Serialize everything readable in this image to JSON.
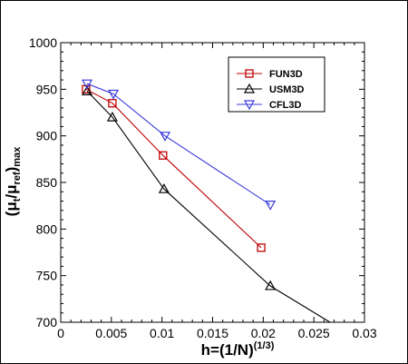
{
  "chart_data": {
    "type": "line",
    "xlabel": {
      "main": "h=(1/N)",
      "sup": "(1/3)"
    },
    "ylabel": {
      "open": "(μ",
      "sub1": "t",
      "mid": "/μ",
      "sub2": "ref",
      "close": ")",
      "sub3": "max"
    },
    "xlim": [
      0,
      0.03
    ],
    "ylim": [
      700,
      1000
    ],
    "x_ticks": [
      0,
      0.005,
      0.01,
      0.015,
      0.02,
      0.025,
      0.03
    ],
    "x_tick_labels": [
      "0",
      "0.005",
      "0.01",
      "0.015",
      "0.02",
      "0.025",
      "0.03"
    ],
    "y_ticks": [
      700,
      750,
      800,
      850,
      900,
      950,
      1000
    ],
    "y_tick_labels": [
      "700",
      "750",
      "800",
      "850",
      "900",
      "950",
      "1000"
    ],
    "grid": false,
    "legend_position": "top-right",
    "series": [
      {
        "name": "FUN3D",
        "color": "#c00000",
        "marker": "square",
        "points": [
          [
            0.0025,
            950
          ],
          [
            0.0051,
            935
          ],
          [
            0.0101,
            879
          ],
          [
            0.0198,
            780
          ]
        ]
      },
      {
        "name": "USM3D",
        "color": "#000000",
        "marker": "triangle-up",
        "points": [
          [
            0.0026,
            948
          ],
          [
            0.0051,
            920
          ],
          [
            0.0102,
            843
          ],
          [
            0.0207,
            739
          ],
          [
            0.0266,
            700
          ]
        ],
        "marker_count": 4
      },
      {
        "name": "CFL3D",
        "color": "#3a3adc",
        "marker": "triangle-down",
        "points": [
          [
            0.0026,
            956
          ],
          [
            0.0052,
            945
          ],
          [
            0.0103,
            900
          ],
          [
            0.0207,
            826
          ]
        ]
      }
    ]
  }
}
